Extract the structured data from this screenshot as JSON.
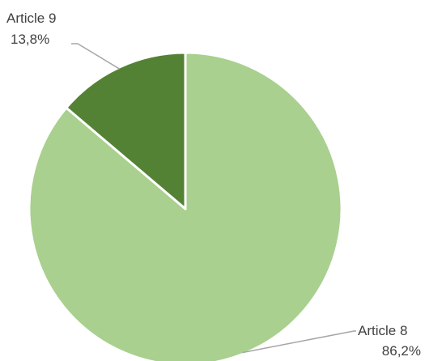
{
  "chart_data": {
    "type": "pie",
    "title": "",
    "categories": [
      "Article 8",
      "Article 9"
    ],
    "values": [
      86.2,
      13.8
    ],
    "value_labels": [
      "86,2%",
      "13,8%"
    ],
    "colors": [
      "#a9d08e",
      "#548235"
    ],
    "start_angle_deg": 0,
    "direction": "clockwise",
    "legend": "none",
    "data_labels": "outside with leader lines",
    "slice_border_color": "#ffffff"
  }
}
